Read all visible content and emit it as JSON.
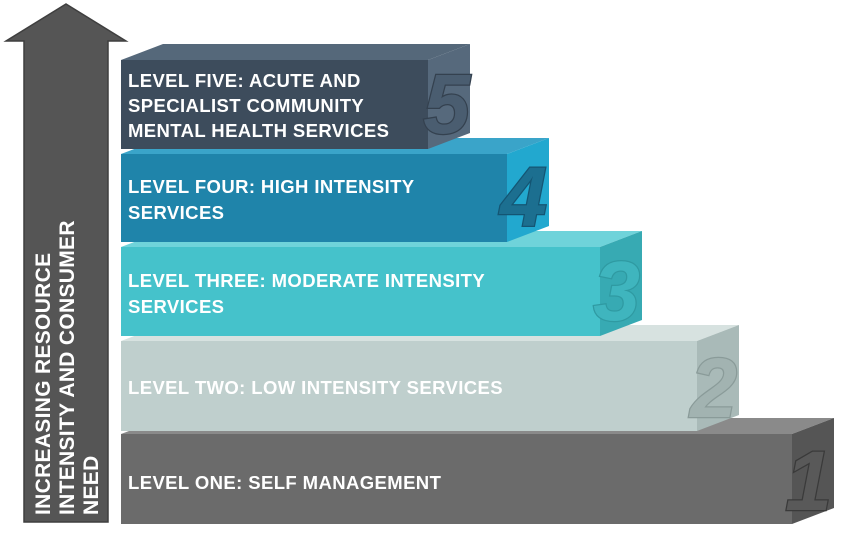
{
  "arrow": {
    "lines": [
      "INCREASING RESOURCE",
      "INTENSITY AND CONSUMER",
      "NEED"
    ],
    "color": "#555555"
  },
  "levels": [
    {
      "number": "1",
      "lines": [
        "LEVEL ONE: SELF MANAGEMENT"
      ],
      "front_color": "#6b6b6b",
      "top_color": "#8a8a8a",
      "side_color": "#555555",
      "number_fill": "#595959",
      "number_stroke": "#3a3a3a"
    },
    {
      "number": "2",
      "lines": [
        "LEVEL TWO: LOW INTENSITY SERVICES"
      ],
      "front_color": "#bfcfcd",
      "top_color": "#d7e2e0",
      "side_color": "#a9bab8",
      "number_fill": "#a2b3b1",
      "number_stroke": "#8a9b99"
    },
    {
      "number": "3",
      "lines": [
        "LEVEL THREE: MODERATE INTENSITY",
        "SERVICES"
      ],
      "front_color": "#45c2cb",
      "top_color": "#6fd3da",
      "side_color": "#37aab3",
      "number_fill": "#3fb5be",
      "number_stroke": "#2f9aa2"
    },
    {
      "number": "4",
      "lines": [
        "LEVEL FOUR: HIGH INTENSITY",
        "SERVICES"
      ],
      "front_color": "#1f84aa",
      "top_color": "#3aa4c9",
      "side_color": "#22a8cf",
      "number_fill": "#1c6f90",
      "number_stroke": "#145573"
    },
    {
      "number": "5",
      "lines": [
        "LEVEL FIVE: ACUTE AND",
        "SPECIALIST COMMUNITY",
        "MENTAL HEALTH SERVICES"
      ],
      "front_color": "#3d4c5c",
      "top_color": "#55687a",
      "side_color": "#56697c",
      "number_fill": "#4a5d70",
      "number_stroke": "#34414f"
    }
  ]
}
